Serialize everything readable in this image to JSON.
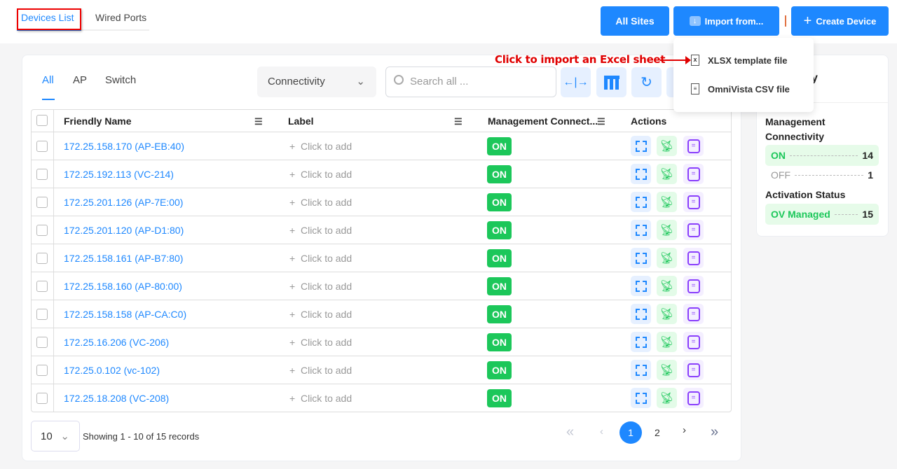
{
  "page_tabs": [
    {
      "label": "Devices List",
      "active": true
    },
    {
      "label": "Wired Ports",
      "active": false
    }
  ],
  "header": {
    "all_sites": "All Sites",
    "import": "Import from...",
    "create": "Create Device",
    "create_icon": "+"
  },
  "import_menu": {
    "items": [
      {
        "label": "XLSX template file",
        "icon": "xlsx-file-icon"
      },
      {
        "label": "OmniVista CSV file",
        "icon": "document-icon"
      }
    ]
  },
  "annotation": "Click to import an Excel sheet",
  "filter_tabs": [
    "All",
    "AP",
    "Switch"
  ],
  "connectivity_select": "Connectivity",
  "search": {
    "placeholder": "Search all ..."
  },
  "table": {
    "columns": [
      "Friendly Name",
      "Label",
      "Management Connect...",
      "Actions"
    ],
    "label_placeholder": "Click to add",
    "rows": [
      {
        "name": "172.25.158.170 (AP-EB:40)",
        "status": "ON"
      },
      {
        "name": "172.25.192.113 (VC-214)",
        "status": "ON"
      },
      {
        "name": "172.25.201.126 (AP-7E:00)",
        "status": "ON"
      },
      {
        "name": "172.25.201.120 (AP-D1:80)",
        "status": "ON"
      },
      {
        "name": "172.25.158.161 (AP-B7:80)",
        "status": "ON"
      },
      {
        "name": "172.25.158.160 (AP-80:00)",
        "status": "ON"
      },
      {
        "name": "172.25.158.158 (AP-CA:C0)",
        "status": "ON"
      },
      {
        "name": "172.25.16.206 (VC-206)",
        "status": "ON"
      },
      {
        "name": "172.25.0.102 (vc-102)",
        "status": "ON"
      },
      {
        "name": "172.25.18.208 (VC-208)",
        "status": "ON"
      }
    ]
  },
  "pagination": {
    "page_size": "10",
    "showing": "Showing 1 - 10 of 15 records",
    "pages": [
      "1",
      "2"
    ],
    "current": "1"
  },
  "summary": {
    "title_visible": "y",
    "mgmt_heading": "Management Connectivity",
    "on_label": "ON",
    "on_count": "14",
    "off_label": "OFF",
    "off_count": "1",
    "activation_heading": "Activation Status",
    "managed_label": "OV Managed",
    "managed_count": "15"
  },
  "colors": {
    "accent": "#1e88ff",
    "on": "#1cc75a",
    "annotation": "#e00000"
  }
}
